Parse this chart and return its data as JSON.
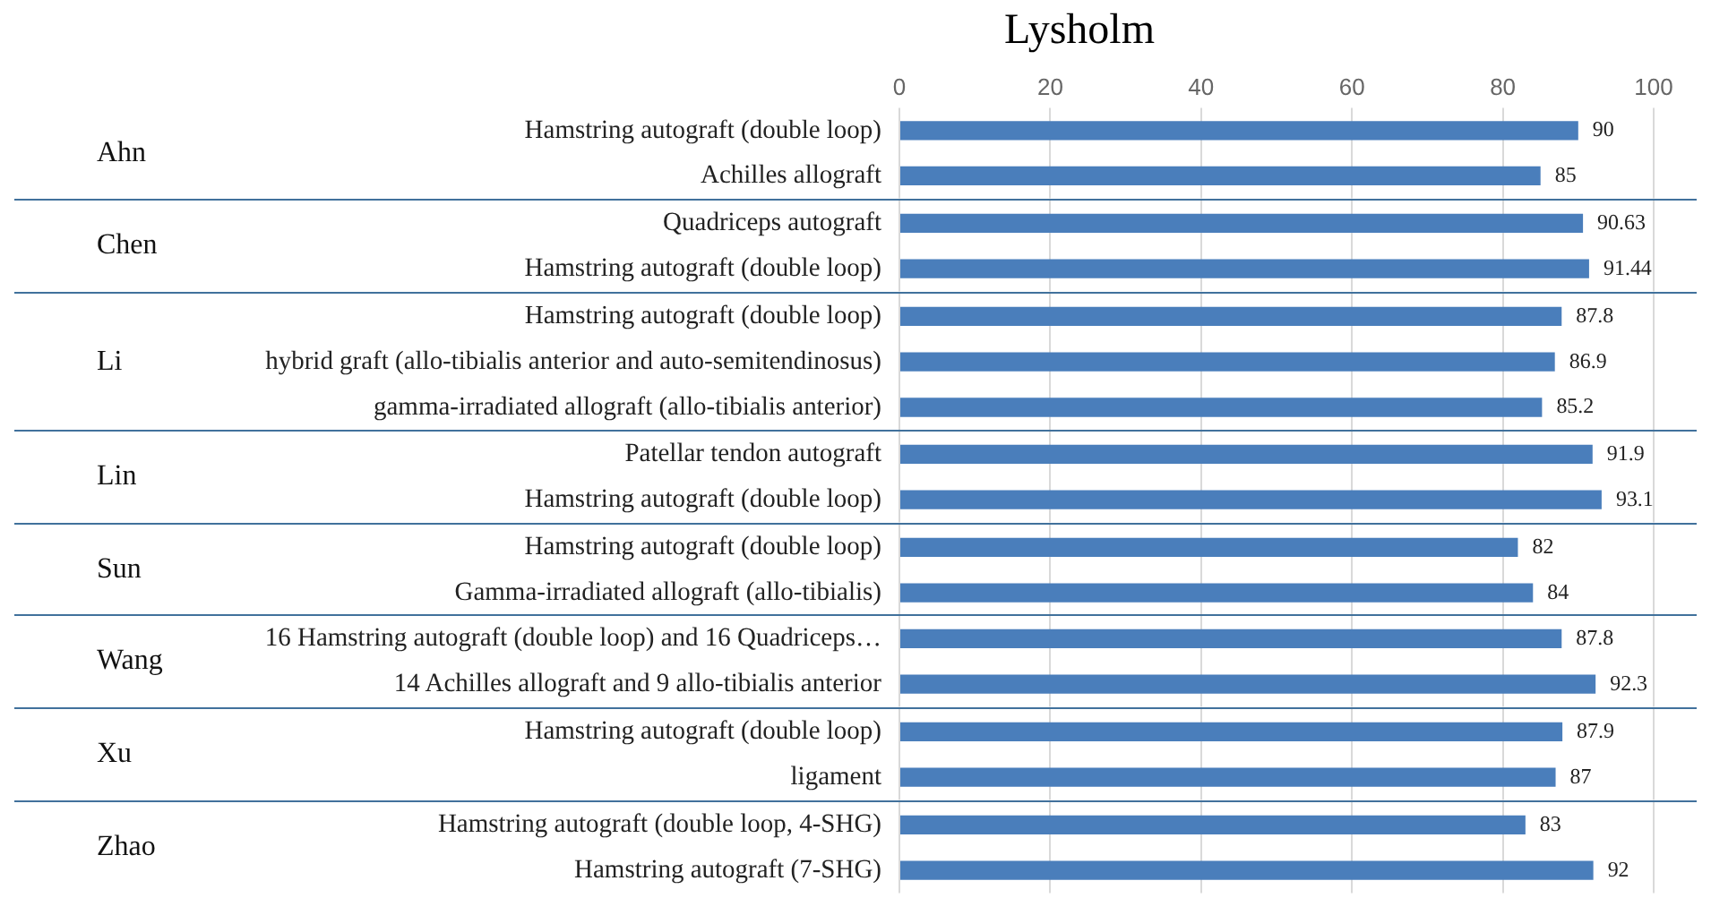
{
  "chart_data": [
    {
      "type": "bar",
      "orientation": "horizontal",
      "title": "Lysholm",
      "ylabel": "Ahn",
      "categories": [
        "Hamstring autograft (double loop)",
        "Achilles allograft"
      ],
      "values": [
        90,
        85
      ],
      "color": "#4a7ebb",
      "xlim": [
        0,
        100
      ],
      "xticks": [
        0,
        20,
        40,
        60,
        80,
        100
      ],
      "grid": "x",
      "data_labels": true
    },
    {
      "type": "bar",
      "orientation": "horizontal",
      "ylabel": "Chen",
      "categories": [
        "Quadriceps autograft",
        "Hamstring autograft (double loop)"
      ],
      "values": [
        90.63,
        91.44
      ],
      "color": "#4a7ebb",
      "xlim": [
        0,
        100
      ],
      "xticks": [
        0,
        20,
        40,
        60,
        80,
        100
      ],
      "grid": "x",
      "data_labels": true,
      "tick_labels": "y"
    },
    {
      "type": "bar",
      "orientation": "horizontal",
      "ylabel": "Li",
      "categories": [
        "Hamstring autograft (double loop)",
        "hybrid graft (allo-tibialis anterior and auto-semitendinosus)",
        "gamma-irradiated allograft (allo-tibialis anterior)"
      ],
      "values": [
        87.8,
        86.9,
        85.2
      ],
      "color": "#4a7ebb",
      "xlim": [
        0,
        100
      ],
      "xticks": [
        0,
        20,
        40,
        60,
        80,
        100
      ],
      "grid": "x",
      "data_labels": true,
      "tick_labels": "y"
    },
    {
      "type": "bar",
      "orientation": "horizontal",
      "ylabel": "Lin",
      "categories": [
        "Patellar tendon autograft",
        "Hamstring autograft (double loop)"
      ],
      "values": [
        91.9,
        93.1
      ],
      "color": "#4a7ebb",
      "xlim": [
        0,
        100
      ],
      "xticks": [
        0,
        20,
        40,
        60,
        80,
        100
      ],
      "grid": "x",
      "data_labels": true,
      "tick_labels": "y"
    },
    {
      "type": "bar",
      "orientation": "horizontal",
      "ylabel": "Sun",
      "categories": [
        "Hamstring autograft (double loop)",
        "Gamma-irradiated allograft (allo-tibialis)"
      ],
      "values": [
        82,
        84
      ],
      "color": "#4a7ebb",
      "xlim": [
        0,
        100
      ],
      "xticks": [
        0,
        20,
        40,
        60,
        80,
        100
      ],
      "grid": "x",
      "data_labels": true,
      "tick_labels": "y"
    },
    {
      "type": "bar",
      "orientation": "horizontal",
      "ylabel": "Wang",
      "categories": [
        "16 Hamstring autograft (double loop) and 16 Quadriceps…",
        "14 Achilles allograft and 9 allo-tibialis anterior"
      ],
      "values": [
        87.8,
        92.3
      ],
      "color": "#4a7ebb",
      "xlim": [
        0,
        100
      ],
      "xticks": [
        0,
        20,
        40,
        60,
        80,
        100
      ],
      "grid": "x",
      "data_labels": true,
      "tick_labels": "y"
    },
    {
      "type": "bar",
      "orientation": "horizontal",
      "ylabel": "Xu",
      "categories": [
        "Hamstring autograft (double loop)",
        "ligament"
      ],
      "values": [
        87.9,
        87
      ],
      "color": "#4a7ebb",
      "xlim": [
        0,
        100
      ],
      "xticks": [
        0,
        20,
        40,
        60,
        80,
        100
      ],
      "grid": "x",
      "data_labels": true,
      "tick_labels": "y"
    },
    {
      "type": "bar",
      "orientation": "horizontal",
      "ylabel": "Zhao",
      "categories": [
        "Hamstring autograft (double loop, 4-SHG)",
        "Hamstring autograft (7-SHG)"
      ],
      "values": [
        83,
        92
      ],
      "color": "#4a7ebb",
      "xlim": [
        0,
        100
      ],
      "xticks": [
        0,
        20,
        40,
        60,
        80,
        100
      ],
      "grid": "x",
      "data_labels": true,
      "tick_labels": "y"
    }
  ]
}
